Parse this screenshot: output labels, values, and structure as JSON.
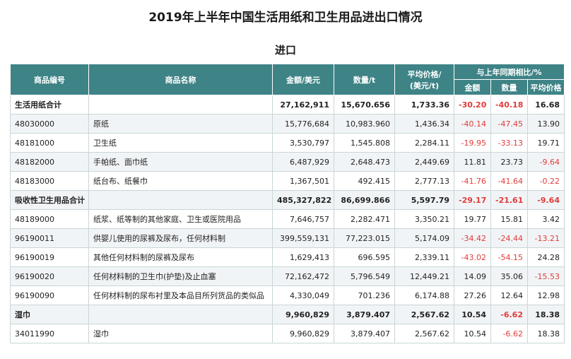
{
  "title": "2019年上半年中国生活用纸和卫生用品进出口情况",
  "subtitle": "进口",
  "headers": {
    "code": "商品编号",
    "name": "商品名称",
    "amount": "金额/美元",
    "quantity": "数量/t",
    "avg_price_line1": "平均价格/",
    "avg_price_line2": "(美元/t)",
    "yoy": "与上年同期相比/%",
    "yoy_amount": "金额",
    "yoy_quantity": "数量",
    "yoy_avg_price": "平均价格"
  },
  "rows": [
    {
      "code": "生活用纸合计",
      "name": "",
      "amount": "27,162,911",
      "quantity": "15,670.656",
      "price": "1,733.36",
      "yoy_amount": "-30.20",
      "yoy_quantity": "-40.18",
      "yoy_price": "16.68",
      "group": true
    },
    {
      "code": "48030000",
      "name": "原纸",
      "amount": "15,776,684",
      "quantity": "10,983.960",
      "price": "1,436.34",
      "yoy_amount": "-40.14",
      "yoy_quantity": "-47.45",
      "yoy_price": "13.90",
      "group": false
    },
    {
      "code": "48181000",
      "name": "卫生纸",
      "amount": "3,530,797",
      "quantity": "1,545.808",
      "price": "2,284.11",
      "yoy_amount": "-19.95",
      "yoy_quantity": "-33.13",
      "yoy_price": "19.71",
      "group": false
    },
    {
      "code": "48182000",
      "name": "手帕纸、面巾纸",
      "amount": "6,487,929",
      "quantity": "2,648.473",
      "price": "2,449.69",
      "yoy_amount": "11.81",
      "yoy_quantity": "23.73",
      "yoy_price": "-9.64",
      "group": false
    },
    {
      "code": "48183000",
      "name": "纸台布、纸餐巾",
      "amount": "1,367,501",
      "quantity": "492.415",
      "price": "2,777.13",
      "yoy_amount": "-41.76",
      "yoy_quantity": "-41.64",
      "yoy_price": "-0.22",
      "group": false
    },
    {
      "code": "吸收性卫生用品合计",
      "name": "",
      "amount": "485,327,822",
      "quantity": "86,699.866",
      "price": "5,597.79",
      "yoy_amount": "-29.17",
      "yoy_quantity": "-21.61",
      "yoy_price": "-9.64",
      "group": true
    },
    {
      "code": "48189000",
      "name": "纸浆、纸等制的其他家庭、卫生或医院用品",
      "amount": "7,646,757",
      "quantity": "2,282.471",
      "price": "3,350.21",
      "yoy_amount": "19.77",
      "yoy_quantity": "15.81",
      "yoy_price": "3.42",
      "group": false
    },
    {
      "code": "96190011",
      "name": "供婴儿使用的尿裤及尿布，任何材料制",
      "amount": "399,559,131",
      "quantity": "77,223.015",
      "price": "5,174.09",
      "yoy_amount": "-34.42",
      "yoy_quantity": "-24.44",
      "yoy_price": "-13.21",
      "group": false
    },
    {
      "code": "96190019",
      "name": "其他任何材料制的尿裤及尿布",
      "amount": "1,629,413",
      "quantity": "696.595",
      "price": "2,339.11",
      "yoy_amount": "-43.02",
      "yoy_quantity": "-54.15",
      "yoy_price": "24.28",
      "group": false
    },
    {
      "code": "96190020",
      "name": "任何材料制的卫生巾(护垫)及止血塞",
      "amount": "72,162,472",
      "quantity": "5,796.549",
      "price": "12,449.21",
      "yoy_amount": "14.09",
      "yoy_quantity": "35.06",
      "yoy_price": "-15.53",
      "group": false
    },
    {
      "code": "96190090",
      "name": "任何材料制的尿布衬里及本品目所列货品的类似品",
      "amount": "4,330,049",
      "quantity": "701.236",
      "price": "6,174.88",
      "yoy_amount": "27.26",
      "yoy_quantity": "12.64",
      "yoy_price": "12.98",
      "group": false
    },
    {
      "code": "湿巾",
      "name": "",
      "amount": "9,960,829",
      "quantity": "3,879.407",
      "price": "2,567.62",
      "yoy_amount": "10.54",
      "yoy_quantity": "-6.62",
      "yoy_price": "18.38",
      "group": true
    },
    {
      "code": "34011990",
      "name": "湿巾",
      "amount": "9,960,829",
      "quantity": "3,879.407",
      "price": "2,567.62",
      "yoy_amount": "10.54",
      "yoy_quantity": "-6.62",
      "yoy_price": "18.38",
      "group": false
    }
  ]
}
